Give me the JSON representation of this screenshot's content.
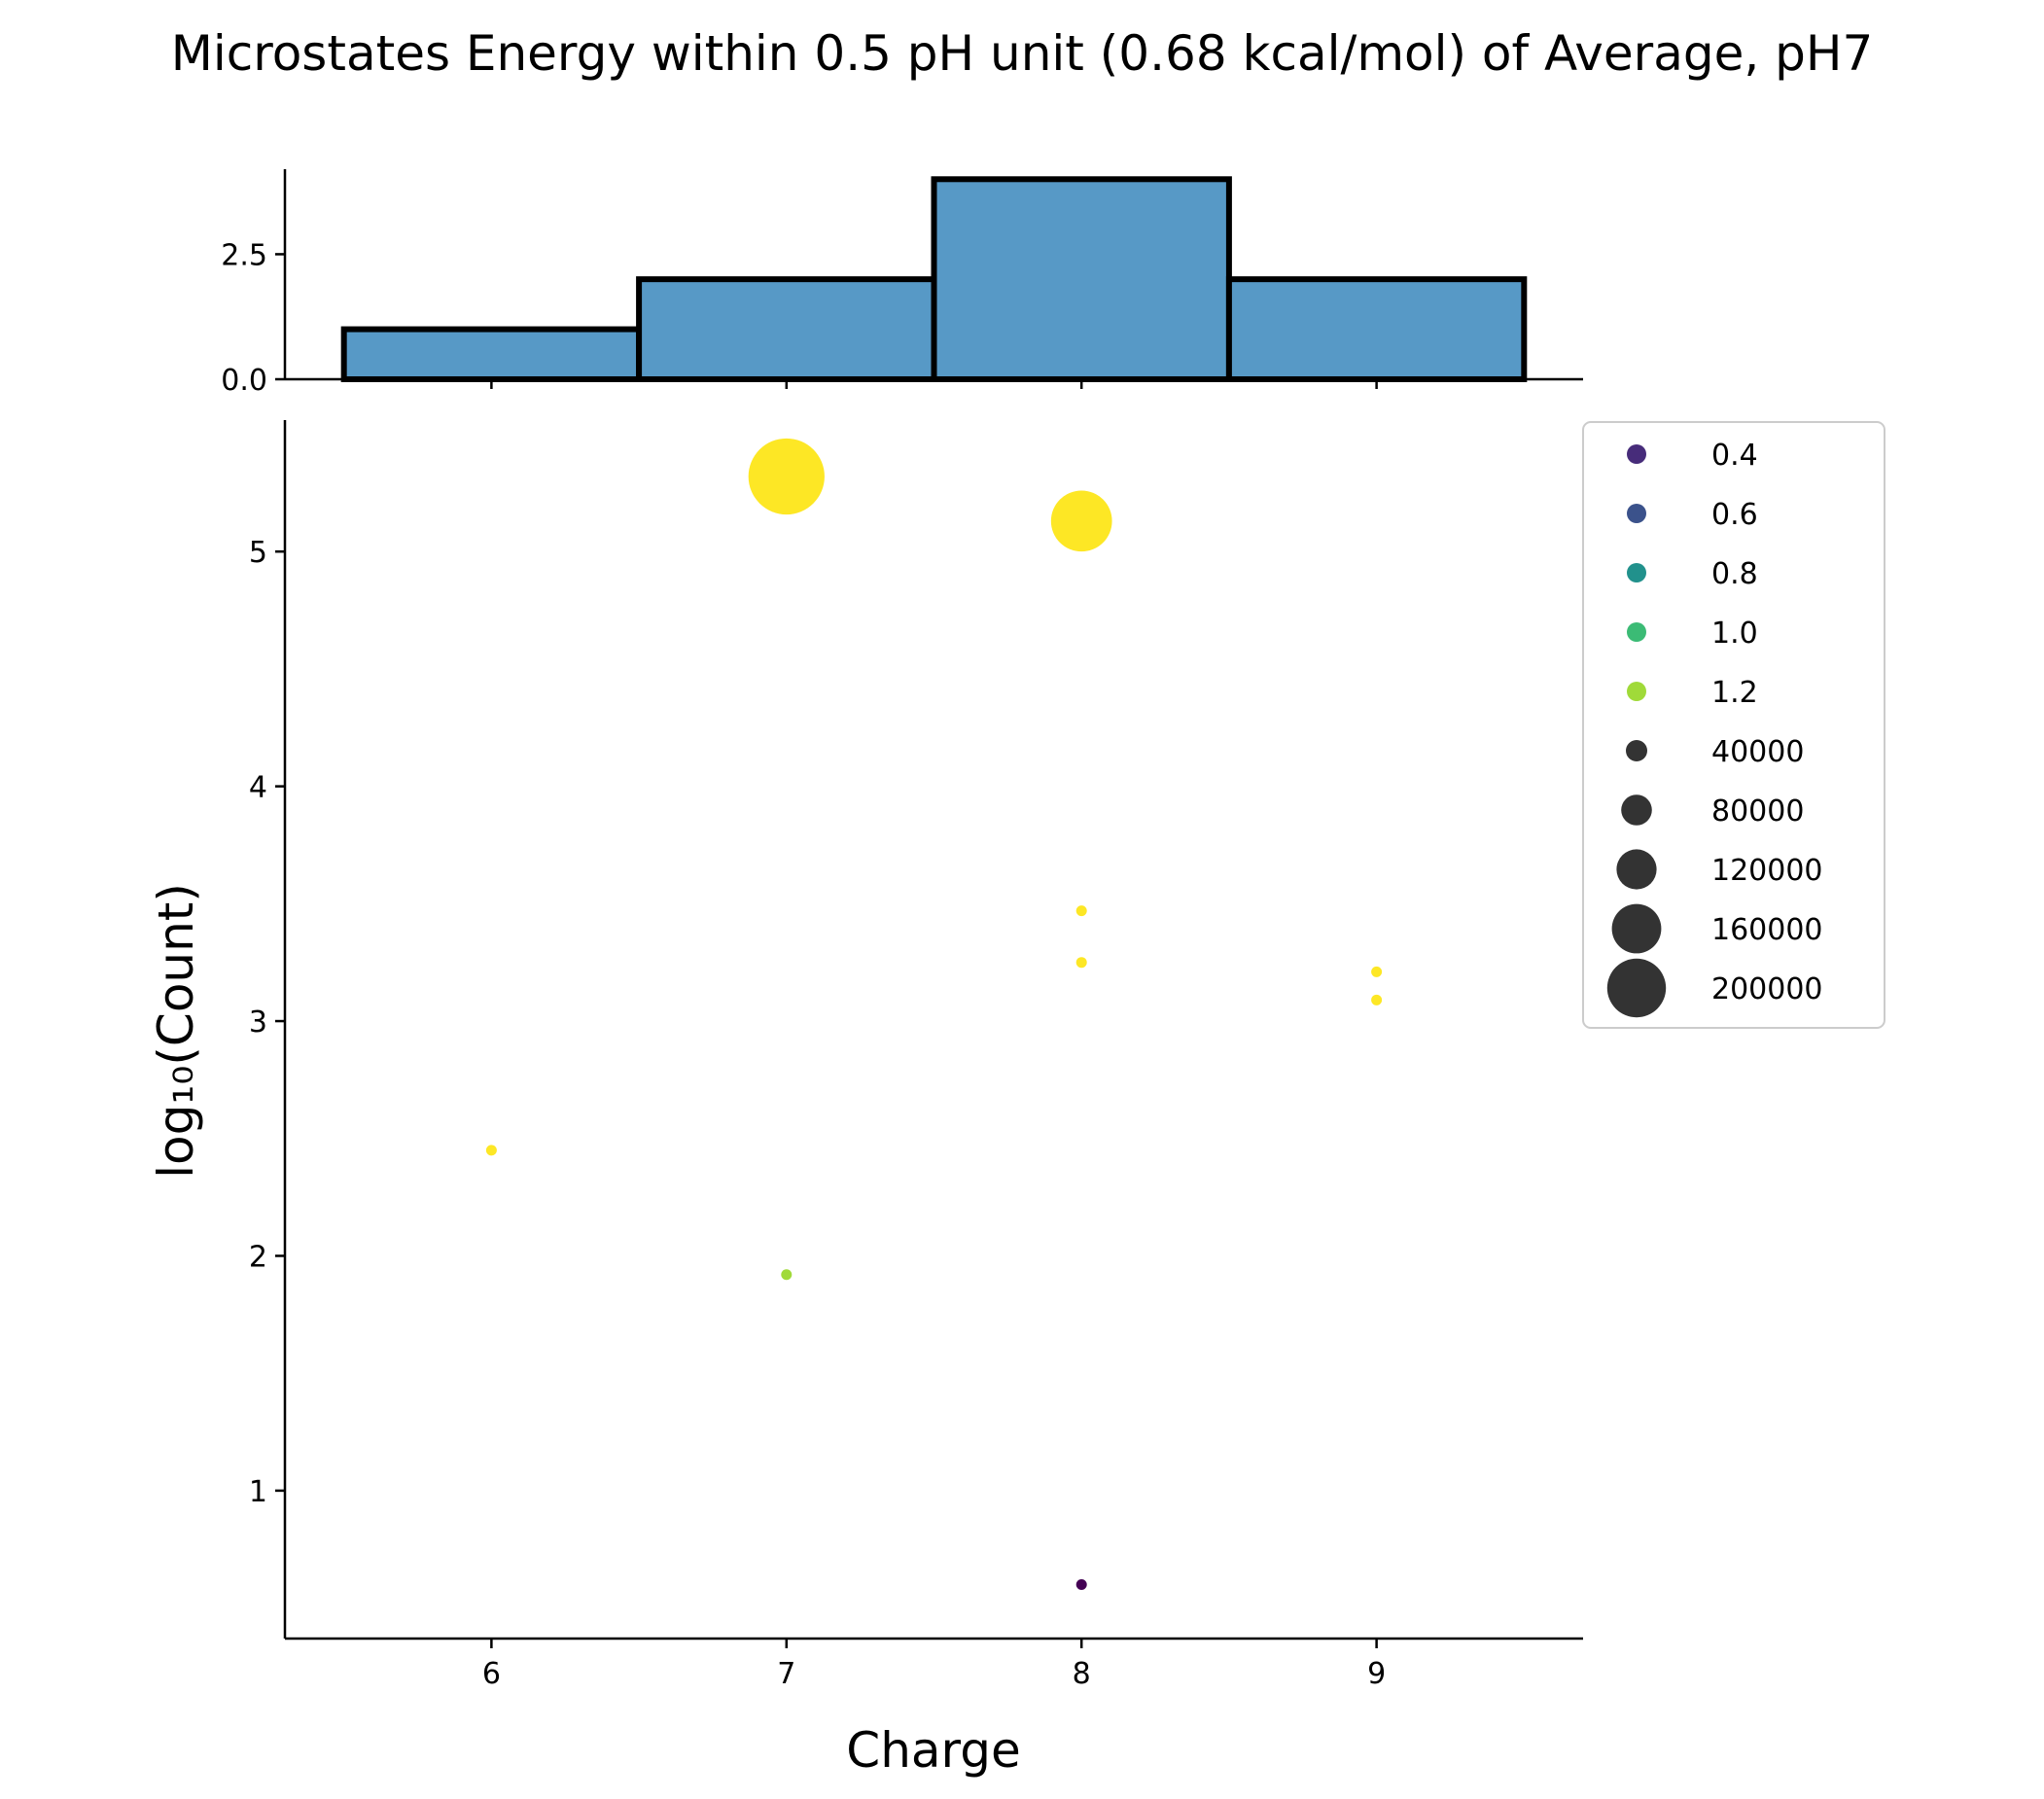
{
  "chart_data": {
    "type": "scatter",
    "title": "Microstates Energy within 0.5 pH unit (0.68 kcal/mol) of Average, pH7",
    "xlabel": "Charge",
    "ylabel": "log₁₀(Count)",
    "xlim": [
      5.3,
      9.7
    ],
    "ylim": [
      0.37,
      5.56
    ],
    "x_ticks": [
      "6",
      "7",
      "8",
      "9"
    ],
    "y_ticks": [
      "1",
      "2",
      "3",
      "4",
      "5"
    ],
    "points": [
      {
        "x": 7,
        "y": 5.32,
        "color_value": 1.33,
        "size_value": 210000
      },
      {
        "x": 8,
        "y": 5.13,
        "color_value": 1.33,
        "size_value": 135000
      },
      {
        "x": 8,
        "y": 3.47,
        "color_value": 1.33,
        "size_value": 2950
      },
      {
        "x": 8,
        "y": 3.25,
        "color_value": 1.33,
        "size_value": 1780
      },
      {
        "x": 9,
        "y": 3.21,
        "color_value": 1.33,
        "size_value": 1620
      },
      {
        "x": 9,
        "y": 3.09,
        "color_value": 1.33,
        "size_value": 1230
      },
      {
        "x": 6,
        "y": 2.45,
        "color_value": 1.33,
        "size_value": 280
      },
      {
        "x": 7,
        "y": 1.92,
        "color_value": 1.2,
        "size_value": 83
      },
      {
        "x": 8,
        "y": 0.6,
        "color_value": 0.3,
        "size_value": 4
      }
    ],
    "marginal_histogram": {
      "type": "bar",
      "bins": [
        {
          "range": [
            5.5,
            6.5
          ],
          "count": 1
        },
        {
          "range": [
            6.5,
            7.5
          ],
          "count": 2
        },
        {
          "range": [
            7.5,
            8.5
          ],
          "count": 4
        },
        {
          "range": [
            8.5,
            9.5
          ],
          "count": 2
        }
      ],
      "ylim": [
        0,
        4.2
      ],
      "y_ticks": [
        "0.0",
        "2.5"
      ],
      "fill_color": "#5799c6",
      "edge_color": "#000000"
    },
    "legend": {
      "placement": "right of plot, top",
      "hue_entries": [
        {
          "label": "0.4",
          "color": "#472c7a"
        },
        {
          "label": "0.6",
          "color": "#3b528b"
        },
        {
          "label": "0.8",
          "color": "#21918c"
        },
        {
          "label": "1.0",
          "color": "#3bbb75"
        },
        {
          "label": "1.2",
          "color": "#a0da39"
        }
      ],
      "size_entries": [
        {
          "label": "40000",
          "value": 40000
        },
        {
          "label": "80000",
          "value": 80000
        },
        {
          "label": "120000",
          "value": 120000
        },
        {
          "label": "160000",
          "value": 160000
        },
        {
          "label": "200000",
          "value": 200000
        }
      ],
      "size_marker_color": "#333333"
    },
    "point_colors": {
      "high": "#fde725",
      "mid": "#a0da39",
      "low": "#440154"
    },
    "grid": false
  }
}
